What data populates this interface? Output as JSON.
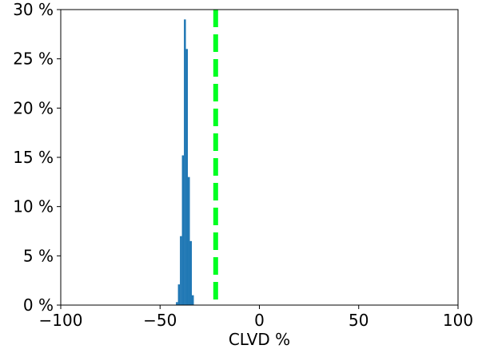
{
  "chart_data": {
    "type": "bar",
    "title": "",
    "xlabel": "CLVD %",
    "ylabel": "",
    "xlim": [
      -100,
      100
    ],
    "ylim": [
      0,
      30
    ],
    "grid": false,
    "xticks": [
      {
        "value": -100,
        "label": "−100"
      },
      {
        "value": -50,
        "label": "−50"
      },
      {
        "value": 0,
        "label": "0"
      },
      {
        "value": 50,
        "label": "50"
      },
      {
        "value": 100,
        "label": "100"
      }
    ],
    "yticks": [
      {
        "value": 0,
        "label": "0 %"
      },
      {
        "value": 5,
        "label": "5 %"
      },
      {
        "value": 10,
        "label": "10 %"
      },
      {
        "value": 15,
        "label": "15 %"
      },
      {
        "value": 20,
        "label": "20 %"
      },
      {
        "value": 25,
        "label": "25 %"
      },
      {
        "value": 30,
        "label": "30 %"
      }
    ],
    "bins": [
      {
        "x0": -42,
        "x1": -41,
        "value": 0.3
      },
      {
        "x0": -41,
        "x1": -40,
        "value": 2.1
      },
      {
        "x0": -40,
        "x1": -39,
        "value": 7.0
      },
      {
        "x0": -39,
        "x1": -38,
        "value": 15.2
      },
      {
        "x0": -38,
        "x1": -37,
        "value": 29.0
      },
      {
        "x0": -37,
        "x1": -36,
        "value": 26.0
      },
      {
        "x0": -36,
        "x1": -35,
        "value": 13.0
      },
      {
        "x0": -35,
        "x1": -34,
        "value": 6.5
      },
      {
        "x0": -34,
        "x1": -33,
        "value": 1.0
      }
    ],
    "bar_color": "#1f77b4",
    "reference_line": {
      "x": -22,
      "color": "#00ff22",
      "style": "dashed"
    }
  }
}
